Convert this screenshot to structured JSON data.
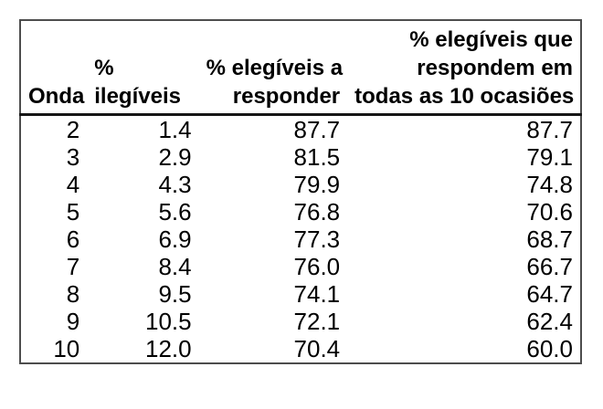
{
  "colors": {
    "background": "#ffffff",
    "text": "#000000",
    "outer_border": "#4d4d4d",
    "header_rule": "#161616"
  },
  "table": {
    "columns": [
      {
        "key": "onda",
        "label": "Onda",
        "label_lines": "Onda",
        "align": "right",
        "header_align": "right"
      },
      {
        "key": "pct-ilegiveis",
        "label": "% ilegíveis",
        "label_lines": "%\nilegíveis",
        "align": "right",
        "header_align": "left"
      },
      {
        "key": "pct-elegiveis-a-responder",
        "label": "% elegíveis a responder",
        "label_lines": "% elegíveis a\nresponder",
        "align": "right",
        "header_align": "right"
      },
      {
        "key": "pct-elegiveis-todas-ocasioes",
        "label": "% elegíveis que respondem em todas as 10 ocasiões",
        "label_lines": "% elegíveis que\nrespondem em\ntodas as 10 ocasiões",
        "align": "right",
        "header_align": "right"
      }
    ],
    "rows": [
      [
        "2",
        "1.4",
        "87.7",
        "87.7"
      ],
      [
        "3",
        "2.9",
        "81.5",
        "79.1"
      ],
      [
        "4",
        "4.3",
        "79.9",
        "74.8"
      ],
      [
        "5",
        "5.6",
        "76.8",
        "70.6"
      ],
      [
        "6",
        "6.9",
        "77.3",
        "68.7"
      ],
      [
        "7",
        "8.4",
        "76.0",
        "66.7"
      ],
      [
        "8",
        "9.5",
        "74.1",
        "64.7"
      ],
      [
        "9",
        "10.5",
        "72.1",
        "62.4"
      ],
      [
        "10",
        "12.0",
        "70.4",
        "60.0"
      ]
    ]
  }
}
